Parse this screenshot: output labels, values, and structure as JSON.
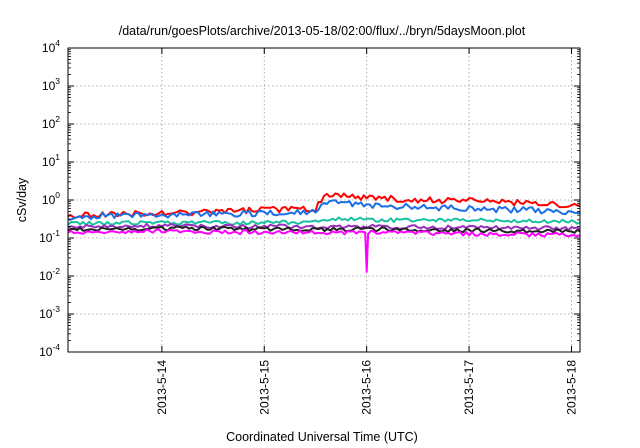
{
  "chart_data": {
    "type": "line",
    "title": "/data/run/goesPlots/archive/2013-05-18/02:00/flux/../bryn/5daysMoon.plot",
    "xlabel": "Coordinated Universal Time (UTC)",
    "ylabel": "cSv/day",
    "x_range": [
      "2013-05-13T02:00",
      "2013-05-18T02:00"
    ],
    "y_scale": "log",
    "ylim": [
      0.0001,
      10000
    ],
    "grid": true,
    "legend": "none",
    "x_ticks": [
      {
        "x": "2013-05-14T00:00",
        "label": "2013-5-14"
      },
      {
        "x": "2013-05-15T00:00",
        "label": "2013-5-15"
      },
      {
        "x": "2013-05-16T00:00",
        "label": "2013-5-16"
      },
      {
        "x": "2013-05-17T00:00",
        "label": "2013-5-17"
      },
      {
        "x": "2013-05-18T00:00",
        "label": "2013-5-18"
      }
    ],
    "y_ticks": [
      {
        "value": 0.0001,
        "base": "10",
        "exp": "-4"
      },
      {
        "value": 0.001,
        "base": "10",
        "exp": "-3"
      },
      {
        "value": 0.01,
        "base": "10",
        "exp": "-2"
      },
      {
        "value": 0.1,
        "base": "10",
        "exp": "-1"
      },
      {
        "value": 1,
        "base": "10",
        "exp": "0"
      },
      {
        "value": 10,
        "base": "10",
        "exp": "1"
      },
      {
        "value": 100,
        "base": "10",
        "exp": "2"
      },
      {
        "value": 1000,
        "base": "10",
        "exp": "3"
      },
      {
        "value": 10000,
        "base": "10",
        "exp": "4"
      }
    ],
    "series": [
      {
        "color": "#ff0000",
        "x": [
          "2013-05-13T02:00",
          "2013-05-13T08:00",
          "2013-05-14T00:00",
          "2013-05-14T12:00",
          "2013-05-15T00:00",
          "2013-05-15T12:00",
          "2013-05-15T14:00",
          "2013-05-15T18:00",
          "2013-05-16T00:00",
          "2013-05-16T12:00",
          "2013-05-17T00:00",
          "2013-05-17T12:00",
          "2013-05-18T00:00",
          "2013-05-18T02:00"
        ],
        "values": [
          0.35,
          0.42,
          0.45,
          0.5,
          0.55,
          0.6,
          1.2,
          1.3,
          1.15,
          1.0,
          0.95,
          0.85,
          0.75,
          0.7
        ]
      },
      {
        "color": "#1a6ee6",
        "x": [
          "2013-05-13T02:00",
          "2013-05-13T08:00",
          "2013-05-14T00:00",
          "2013-05-14T12:00",
          "2013-05-15T00:00",
          "2013-05-15T12:00",
          "2013-05-15T14:00",
          "2013-05-15T18:00",
          "2013-05-16T00:00",
          "2013-05-16T12:00",
          "2013-05-17T00:00",
          "2013-05-17T12:00",
          "2013-05-18T00:00",
          "2013-05-18T02:00"
        ],
        "values": [
          0.3,
          0.38,
          0.4,
          0.42,
          0.45,
          0.48,
          0.8,
          0.85,
          0.75,
          0.65,
          0.6,
          0.55,
          0.5,
          0.45
        ]
      },
      {
        "color": "#19c2a0",
        "x": [
          "2013-05-13T02:00",
          "2013-05-14T00:00",
          "2013-05-15T00:00",
          "2013-05-15T12:00",
          "2013-05-15T16:00",
          "2013-05-16T00:00",
          "2013-05-17T00:00",
          "2013-05-18T00:00",
          "2013-05-18T02:00"
        ],
        "values": [
          0.24,
          0.25,
          0.25,
          0.26,
          0.32,
          0.3,
          0.29,
          0.27,
          0.26
        ]
      },
      {
        "color": "#9a2fbf",
        "x": [
          "2013-05-13T02:00",
          "2013-05-14T00:00",
          "2013-05-15T00:00",
          "2013-05-16T00:00",
          "2013-05-17T00:00",
          "2013-05-18T00:00",
          "2013-05-18T02:00"
        ],
        "values": [
          0.2,
          0.21,
          0.2,
          0.2,
          0.19,
          0.18,
          0.17
        ]
      },
      {
        "color": "#222222",
        "x": [
          "2013-05-13T02:00",
          "2013-05-14T00:00",
          "2013-05-15T00:00",
          "2013-05-16T00:00",
          "2013-05-17T00:00",
          "2013-05-18T00:00",
          "2013-05-18T02:00"
        ],
        "values": [
          0.17,
          0.18,
          0.17,
          0.17,
          0.16,
          0.15,
          0.15
        ]
      },
      {
        "color": "#ff00ff",
        "x": [
          "2013-05-13T02:00",
          "2013-05-14T00:00",
          "2013-05-15T00:00",
          "2013-05-15T23:40",
          "2013-05-16T00:00",
          "2013-05-16T00:20",
          "2013-05-17T00:00",
          "2013-05-18T00:00",
          "2013-05-18T02:00"
        ],
        "values": [
          0.14,
          0.15,
          0.14,
          0.14,
          0.013,
          0.14,
          0.13,
          0.12,
          0.12
        ]
      }
    ]
  }
}
